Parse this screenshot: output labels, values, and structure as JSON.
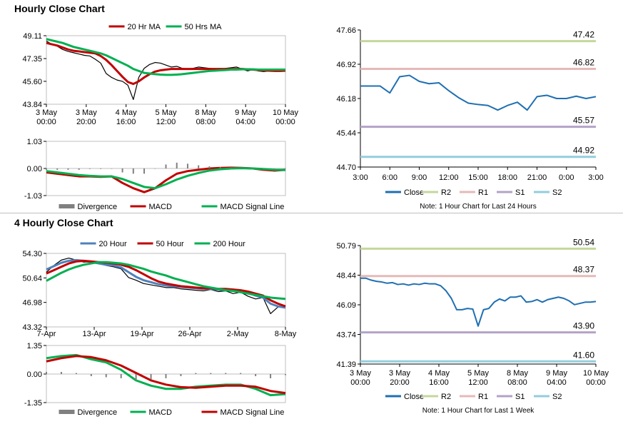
{
  "sections": {
    "hourly_title": "Hourly Close Chart",
    "four_hourly_title": "4 Hourly Close Chart"
  },
  "chart_data": [
    {
      "id": "hourly-price",
      "type": "line",
      "legend": [
        "20 Hr MA",
        "50 Hrs MA"
      ],
      "legend_position": "top-center",
      "colors": {
        "20 Hr MA": "#c00000",
        "50 Hrs MA": "#00b050",
        "price": "#000000"
      },
      "yticks": [
        "49.11",
        "47.35",
        "45.60",
        "43.84"
      ],
      "ylim": [
        43.84,
        49.11
      ],
      "xticks": [
        "3 May\n00:00",
        "3 May\n20:00",
        "4 May\n16:00",
        "5 May\n12:00",
        "8 May\n08:00",
        "9 May\n04:00",
        "10 May\n00:00"
      ],
      "x": [
        0,
        4,
        8,
        12,
        16,
        20,
        24,
        28,
        32,
        36,
        40,
        44,
        48,
        52,
        56,
        60,
        64,
        68,
        72,
        76,
        80,
        84,
        88,
        92,
        96,
        100,
        104,
        108,
        112,
        116,
        120,
        124,
        128,
        132,
        136,
        140,
        144,
        148,
        152,
        156,
        160,
        164,
        168,
        172,
        176
      ],
      "series": [
        {
          "name": "price",
          "values": [
            48.7,
            48.45,
            48.3,
            48.05,
            47.9,
            47.8,
            47.7,
            47.6,
            47.55,
            47.3,
            47.0,
            46.2,
            45.9,
            45.7,
            45.6,
            45.3,
            44.2,
            45.9,
            46.6,
            46.9,
            47.05,
            47.0,
            46.85,
            46.7,
            46.75,
            46.6,
            46.55,
            46.6,
            46.7,
            46.65,
            46.6,
            46.55,
            46.5,
            46.6,
            46.65,
            46.7,
            46.55,
            46.4,
            46.5,
            46.4,
            46.35,
            46.4,
            46.45,
            46.5,
            46.55
          ]
        },
        {
          "name": "20 Hr MA",
          "values": [
            48.55,
            48.45,
            48.35,
            48.2,
            48.05,
            47.95,
            47.9,
            47.85,
            47.8,
            47.75,
            47.55,
            47.25,
            46.85,
            46.4,
            45.95,
            45.55,
            45.4,
            45.6,
            45.9,
            46.15,
            46.35,
            46.45,
            46.5,
            46.55,
            46.55,
            46.55,
            46.55,
            46.55,
            46.55,
            46.55,
            46.55,
            46.55,
            46.55,
            46.55,
            46.55,
            46.55,
            46.55,
            46.52,
            46.5,
            46.47,
            46.45,
            46.42,
            46.4,
            46.4,
            46.42
          ]
        },
        {
          "name": "50 Hrs MA",
          "values": [
            48.85,
            48.75,
            48.65,
            48.55,
            48.4,
            48.25,
            48.15,
            48.05,
            47.95,
            47.85,
            47.75,
            47.6,
            47.4,
            47.2,
            47.0,
            46.8,
            46.55,
            46.4,
            46.25,
            46.2,
            46.15,
            46.12,
            46.1,
            46.1,
            46.12,
            46.15,
            46.2,
            46.25,
            46.3,
            46.35,
            46.4,
            46.42,
            46.45,
            46.47,
            46.5,
            46.5,
            46.52,
            46.52,
            46.52,
            46.5,
            46.5,
            46.5,
            46.5,
            46.5,
            46.5
          ]
        }
      ]
    },
    {
      "id": "hourly-macd",
      "type": "line",
      "legend": [
        "Divergence",
        "MACD",
        "MACD Signal Line"
      ],
      "legend_position": "bottom-center",
      "colors": {
        "Divergence": "#808080",
        "MACD": "#c00000",
        "MACD Signal Line": "#00b050"
      },
      "yticks": [
        "1.03",
        "0.00",
        "-1.03"
      ],
      "ylim": [
        -1.03,
        1.03
      ],
      "x": [
        0,
        8,
        16,
        24,
        32,
        40,
        48,
        56,
        64,
        72,
        80,
        88,
        96,
        104,
        112,
        120,
        128,
        136,
        144,
        152,
        160,
        168,
        176
      ],
      "series": [
        {
          "name": "MACD",
          "values": [
            -0.15,
            -0.2,
            -0.25,
            -0.3,
            -0.3,
            -0.32,
            -0.3,
            -0.55,
            -0.75,
            -0.9,
            -0.75,
            -0.45,
            -0.2,
            -0.1,
            -0.05,
            0.0,
            0.02,
            0.03,
            0.02,
            0.0,
            -0.05,
            -0.08,
            -0.05
          ]
        },
        {
          "name": "MACD Signal Line",
          "values": [
            -0.1,
            -0.15,
            -0.2,
            -0.25,
            -0.28,
            -0.3,
            -0.3,
            -0.4,
            -0.55,
            -0.7,
            -0.75,
            -0.6,
            -0.42,
            -0.28,
            -0.17,
            -0.08,
            -0.03,
            0.0,
            0.01,
            0.0,
            -0.02,
            -0.05,
            -0.06
          ]
        },
        {
          "name": "Divergence",
          "values": [
            -0.05,
            -0.05,
            -0.05,
            -0.05,
            -0.02,
            -0.02,
            0.0,
            -0.15,
            -0.2,
            -0.2,
            0.0,
            0.15,
            0.22,
            0.18,
            0.12,
            0.08,
            0.05,
            0.03,
            0.01,
            0.0,
            -0.03,
            -0.03,
            0.01
          ]
        }
      ]
    },
    {
      "id": "hourly-levels",
      "type": "line",
      "legend": [
        "Close",
        "R2",
        "R1",
        "S1",
        "S2"
      ],
      "legend_position": "bottom-center",
      "note": "Note: 1 Hour Chart for Last 24 Hours",
      "colors": {
        "Close": "#1f6fb2",
        "R2": "#c4d79b",
        "R1": "#e6b9b8",
        "S1": "#b3a2c7",
        "S2": "#93cddd"
      },
      "yticks": [
        "47.66",
        "46.92",
        "46.18",
        "45.44",
        "44.70"
      ],
      "ylim": [
        44.7,
        47.66
      ],
      "xticks": [
        "3:00",
        "6:00",
        "9:00",
        "12:00",
        "15:00",
        "18:00",
        "21:00",
        "0:00",
        "3:00"
      ],
      "levels": [
        {
          "name": "R2",
          "value": 47.42,
          "label": "47.42"
        },
        {
          "name": "R1",
          "value": 46.82,
          "label": "46.82"
        },
        {
          "name": "S1",
          "value": 45.57,
          "label": "45.57"
        },
        {
          "name": "S2",
          "value": 44.92,
          "label": "44.92"
        }
      ],
      "x": [
        0,
        1,
        2,
        3,
        4,
        5,
        6,
        7,
        8,
        9,
        10,
        11,
        12,
        13,
        14,
        15,
        16,
        17,
        18,
        19,
        20,
        21,
        22,
        23,
        24
      ],
      "series": [
        {
          "name": "Close",
          "values": [
            46.45,
            46.45,
            46.45,
            46.3,
            46.65,
            46.68,
            46.55,
            46.5,
            46.52,
            46.35,
            46.2,
            46.08,
            46.05,
            46.03,
            45.93,
            46.03,
            46.1,
            45.93,
            46.22,
            46.25,
            46.18,
            46.18,
            46.23,
            46.18,
            46.22
          ]
        }
      ]
    },
    {
      "id": "four-hourly-price",
      "type": "line",
      "legend": [
        "20 Hour",
        "50 Hour",
        "200 Hour"
      ],
      "legend_position": "top-center",
      "colors": {
        "20 Hour": "#4f81bd",
        "50 Hour": "#c00000",
        "200 Hour": "#00b050",
        "price": "#000000"
      },
      "yticks": [
        "54.30",
        "50.64",
        "46.98",
        "43.32"
      ],
      "ylim": [
        43.32,
        54.3
      ],
      "xticks": [
        "7-Apr",
        "13-Apr",
        "19-Apr",
        "26-Apr",
        "2-May",
        "8-May"
      ],
      "x": [
        0,
        3,
        6,
        9,
        12,
        15,
        18,
        21,
        24,
        27,
        30,
        33,
        36,
        39,
        42,
        45,
        48,
        51,
        54,
        57,
        60,
        63,
        66,
        69,
        72,
        75,
        78,
        81,
        84,
        87,
        90,
        93,
        96
      ],
      "series": [
        {
          "name": "price",
          "values": [
            51.5,
            52.5,
            53.3,
            53.6,
            53.3,
            53.0,
            53.0,
            52.8,
            52.5,
            52.3,
            52.0,
            50.7,
            50.3,
            49.8,
            49.6,
            49.4,
            49.2,
            49.2,
            49.0,
            48.9,
            48.8,
            48.7,
            48.9,
            48.6,
            48.7,
            48.3,
            48.5,
            47.9,
            47.5,
            47.7,
            45.3,
            46.3,
            46.3
          ]
        },
        {
          "name": "20 Hour",
          "values": [
            51.9,
            52.4,
            52.9,
            53.2,
            53.3,
            53.2,
            53.0,
            52.8,
            52.6,
            52.5,
            52.2,
            51.5,
            50.8,
            50.3,
            50.0,
            49.7,
            49.5,
            49.4,
            49.3,
            49.2,
            49.1,
            49.0,
            49.0,
            48.9,
            48.8,
            48.7,
            48.6,
            48.4,
            48.0,
            47.7,
            46.8,
            46.4,
            46.2
          ]
        },
        {
          "name": "50 Hour",
          "values": [
            51.3,
            51.8,
            52.3,
            52.8,
            53.1,
            53.2,
            53.1,
            53.0,
            52.9,
            52.8,
            52.6,
            52.3,
            51.8,
            51.2,
            50.6,
            50.1,
            49.8,
            49.6,
            49.4,
            49.3,
            49.2,
            49.1,
            49.1,
            49.0,
            49.0,
            48.9,
            48.8,
            48.6,
            48.3,
            48.0,
            47.3,
            46.8,
            46.4
          ]
        },
        {
          "name": "200 Hour",
          "values": [
            50.2,
            50.8,
            51.4,
            51.9,
            52.3,
            52.6,
            52.8,
            53.0,
            53.0,
            52.9,
            52.8,
            52.6,
            52.3,
            52.0,
            51.6,
            51.3,
            51.0,
            50.6,
            50.3,
            50.0,
            49.7,
            49.4,
            49.2,
            49.0,
            48.8,
            48.7,
            48.5,
            48.3,
            48.1,
            47.9,
            47.7,
            47.6,
            47.5
          ]
        }
      ]
    },
    {
      "id": "four-hourly-macd",
      "type": "line",
      "legend": [
        "Divergence",
        "MACD",
        "MACD Signal Line"
      ],
      "legend_position": "bottom-center",
      "colors": {
        "Divergence": "#808080",
        "MACD": "#00b050",
        "MACD Signal Line": "#c00000"
      },
      "yticks": [
        "1.35",
        "0.00",
        "-1.35"
      ],
      "ylim": [
        -1.35,
        1.35
      ],
      "x": [
        0,
        6,
        12,
        18,
        24,
        30,
        36,
        42,
        48,
        54,
        60,
        66,
        72,
        78,
        84,
        90,
        96
      ],
      "series": [
        {
          "name": "MACD",
          "values": [
            0.75,
            0.85,
            0.9,
            0.7,
            0.55,
            0.2,
            -0.3,
            -0.55,
            -0.7,
            -0.7,
            -0.6,
            -0.55,
            -0.5,
            -0.5,
            -0.7,
            -1.0,
            -0.95
          ]
        },
        {
          "name": "MACD Signal Line",
          "values": [
            0.6,
            0.75,
            0.85,
            0.8,
            0.65,
            0.4,
            0.05,
            -0.3,
            -0.5,
            -0.62,
            -0.65,
            -0.6,
            -0.55,
            -0.55,
            -0.6,
            -0.8,
            -0.9
          ]
        },
        {
          "name": "Divergence",
          "values": [
            0.1,
            0.1,
            0.05,
            -0.1,
            -0.15,
            -0.2,
            -0.3,
            -0.25,
            -0.2,
            -0.1,
            0.05,
            0.05,
            0.05,
            0.05,
            -0.1,
            -0.2,
            -0.05
          ]
        }
      ]
    },
    {
      "id": "four-hourly-levels",
      "type": "line",
      "legend": [
        "Close",
        "R2",
        "R1",
        "S1",
        "S2"
      ],
      "legend_position": "bottom-center",
      "note": "Note: 1 Hour Chart for Last 1 Week",
      "colors": {
        "Close": "#1f6fb2",
        "R2": "#c4d79b",
        "R1": "#e6b9b8",
        "S1": "#b3a2c7",
        "S2": "#93cddd"
      },
      "yticks": [
        "50.79",
        "48.44",
        "46.09",
        "43.74",
        "41.39"
      ],
      "ylim": [
        41.39,
        50.79
      ],
      "xticks": [
        "3 May\n00:00",
        "3 May\n20:00",
        "4 May\n16:00",
        "5 May\n12:00",
        "8 May\n08:00",
        "9 May\n04:00",
        "10 May\n00:00"
      ],
      "levels": [
        {
          "name": "R2",
          "value": 50.54,
          "label": "50.54"
        },
        {
          "name": "R1",
          "value": 48.37,
          "label": "48.37"
        },
        {
          "name": "S1",
          "value": 43.9,
          "label": "43.90"
        },
        {
          "name": "S2",
          "value": 41.6,
          "label": "41.60"
        }
      ],
      "x": [
        0,
        4,
        8,
        12,
        16,
        20,
        24,
        28,
        32,
        36,
        40,
        44,
        48,
        52,
        56,
        60,
        64,
        68,
        72,
        76,
        80,
        84,
        88,
        92,
        96,
        100,
        104,
        108,
        112,
        116,
        120,
        124,
        128,
        132,
        136,
        140,
        144,
        148,
        152,
        156,
        160,
        164,
        168,
        172,
        176
      ],
      "series": [
        {
          "name": "Close",
          "values": [
            48.2,
            48.2,
            48.05,
            47.95,
            47.9,
            47.8,
            47.85,
            47.7,
            47.75,
            47.65,
            47.75,
            47.7,
            47.8,
            47.75,
            47.75,
            47.6,
            47.2,
            46.6,
            45.7,
            45.7,
            45.8,
            45.75,
            44.4,
            45.7,
            45.8,
            46.3,
            46.55,
            46.4,
            46.7,
            46.7,
            46.8,
            46.3,
            46.35,
            46.5,
            46.3,
            46.5,
            46.6,
            46.7,
            46.6,
            46.4,
            46.1,
            46.2,
            46.3,
            46.3,
            46.35
          ]
        }
      ]
    }
  ]
}
